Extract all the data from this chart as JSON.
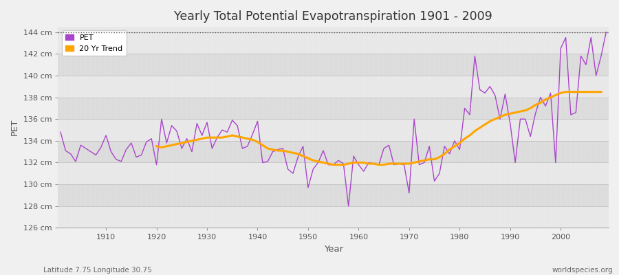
{
  "title": "Yearly Total Potential Evapotranspiration 1901 - 2009",
  "xlabel": "Year",
  "ylabel": "PET",
  "subtitle_left": "Latitude 7.75 Longitude 30.75",
  "subtitle_right": "worldspecies.org",
  "pet_color": "#AA44CC",
  "trend_color": "#FFA500",
  "fig_bg_color": "#F0F0F0",
  "plot_bg_color": "#E8E8E8",
  "band_color1": "#E8E8E8",
  "band_color2": "#DCDCDC",
  "ylim": [
    126,
    144.5
  ],
  "yticks": [
    126,
    128,
    130,
    132,
    134,
    136,
    138,
    140,
    142,
    144
  ],
  "years": [
    1901,
    1902,
    1903,
    1904,
    1905,
    1906,
    1907,
    1908,
    1909,
    1910,
    1911,
    1912,
    1913,
    1914,
    1915,
    1916,
    1917,
    1918,
    1919,
    1920,
    1921,
    1922,
    1923,
    1924,
    1925,
    1926,
    1927,
    1928,
    1929,
    1930,
    1931,
    1932,
    1933,
    1934,
    1935,
    1936,
    1937,
    1938,
    1939,
    1940,
    1941,
    1942,
    1943,
    1944,
    1945,
    1946,
    1947,
    1948,
    1949,
    1950,
    1951,
    1952,
    1953,
    1954,
    1955,
    1956,
    1957,
    1958,
    1959,
    1960,
    1961,
    1962,
    1963,
    1964,
    1965,
    1966,
    1967,
    1968,
    1969,
    1970,
    1971,
    1972,
    1973,
    1974,
    1975,
    1976,
    1977,
    1978,
    1979,
    1980,
    1981,
    1982,
    1983,
    1984,
    1985,
    1986,
    1987,
    1988,
    1989,
    1990,
    1991,
    1992,
    1993,
    1994,
    1995,
    1996,
    1997,
    1998,
    1999,
    2000,
    2001,
    2002,
    2003,
    2004,
    2005,
    2006,
    2007,
    2008,
    2009
  ],
  "pet_values": [
    134.8,
    133.1,
    132.8,
    132.1,
    133.6,
    133.3,
    133.0,
    132.7,
    133.4,
    134.5,
    133.0,
    132.3,
    132.1,
    133.2,
    133.8,
    132.5,
    132.7,
    133.9,
    134.2,
    131.8,
    136.0,
    133.8,
    135.4,
    134.9,
    133.3,
    134.2,
    133.0,
    135.6,
    134.5,
    135.7,
    133.3,
    134.3,
    135.0,
    134.8,
    135.9,
    135.4,
    133.3,
    133.5,
    134.6,
    135.8,
    132.0,
    132.1,
    133.0,
    133.2,
    133.3,
    131.4,
    131.0,
    132.5,
    133.5,
    129.7,
    131.4,
    132.0,
    133.1,
    131.8,
    131.8,
    132.2,
    131.9,
    128.0,
    132.6,
    131.8,
    131.2,
    132.0,
    131.9,
    131.8,
    133.3,
    133.6,
    131.8,
    131.9,
    131.8,
    129.2,
    136.0,
    131.8,
    132.0,
    133.5,
    130.3,
    131.0,
    133.5,
    132.8,
    134.0,
    133.2,
    137.0,
    136.4,
    141.8,
    138.7,
    138.4,
    139.0,
    138.2,
    136.0,
    138.3,
    135.6,
    132.0,
    136.0,
    136.0,
    134.4,
    136.5,
    138.0,
    137.2,
    138.4,
    132.0,
    142.5,
    143.5,
    136.4,
    136.6,
    141.8,
    141.0,
    143.5,
    140.0,
    141.8,
    144.0
  ],
  "trend_values": [
    null,
    null,
    null,
    null,
    null,
    null,
    null,
    null,
    null,
    null,
    null,
    null,
    null,
    null,
    null,
    null,
    null,
    null,
    null,
    133.5,
    133.4,
    133.5,
    133.6,
    133.7,
    133.8,
    133.9,
    134.0,
    134.1,
    134.2,
    134.3,
    134.3,
    134.3,
    134.3,
    134.4,
    134.5,
    134.4,
    134.3,
    134.2,
    134.1,
    133.9,
    133.6,
    133.3,
    133.2,
    133.1,
    133.1,
    133.0,
    132.9,
    132.8,
    132.6,
    132.4,
    132.2,
    132.1,
    132.0,
    131.9,
    131.8,
    131.8,
    131.8,
    131.9,
    132.0,
    132.0,
    132.0,
    131.9,
    131.9,
    131.8,
    131.8,
    131.9,
    131.9,
    131.9,
    131.9,
    131.9,
    132.0,
    132.1,
    132.2,
    132.3,
    132.3,
    132.5,
    132.8,
    133.2,
    133.5,
    133.8,
    134.2,
    134.5,
    134.9,
    135.2,
    135.5,
    135.8,
    136.0,
    136.2,
    136.4,
    136.5,
    136.6,
    136.7,
    136.8,
    137.0,
    137.3,
    137.5,
    137.8,
    138.0,
    138.2,
    138.4,
    138.5,
    138.5,
    138.5,
    138.5,
    138.5,
    138.5,
    138.5,
    138.5
  ]
}
